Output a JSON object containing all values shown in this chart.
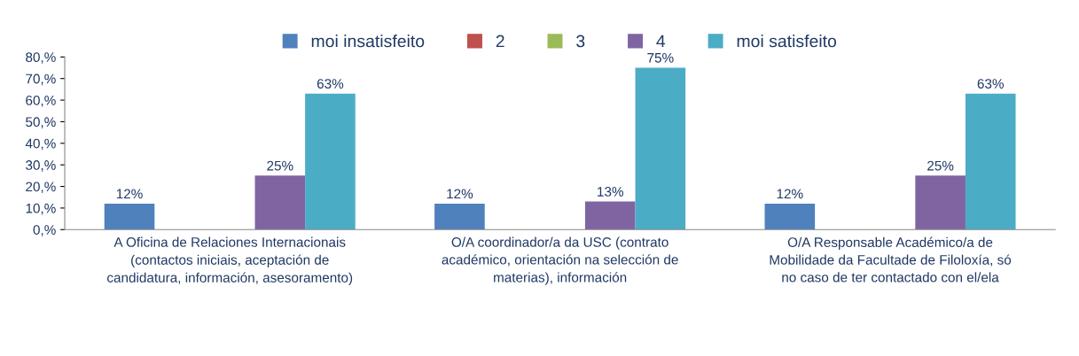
{
  "chart_data": {
    "type": "bar",
    "categories": [
      "A Oficina de Relaciones Internacionais\n(contactos iniciais, aceptación de\ncandidatura, información, asesoramento)",
      "O/A coordinador/a da USC (contrato\nacadémico, orientación na selección de\nmaterias), información",
      "O/A Responsable Académico/a de\nMobilidade da Facultade de Filoloxía, só\nno caso de ter contactado con el/ela"
    ],
    "series": [
      {
        "name": "moi insatisfeito",
        "color": "#4f81bd",
        "values": [
          12,
          12,
          12
        ],
        "value_labels": [
          "12%",
          "12%",
          "12%"
        ]
      },
      {
        "name": "2",
        "color": "#c0504d",
        "values": [
          null,
          null,
          null
        ]
      },
      {
        "name": "3",
        "color": "#9bbb59",
        "values": [
          null,
          null,
          null
        ]
      },
      {
        "name": "4",
        "color": "#8064a2",
        "values": [
          25,
          13,
          25
        ],
        "value_labels": [
          "25%",
          "13%",
          "25%"
        ]
      },
      {
        "name": "moi satisfeito",
        "color": "#4bacc6",
        "values": [
          63,
          75,
          63
        ],
        "value_labels": [
          "63%",
          "75%",
          "63%"
        ]
      }
    ],
    "ylim": [
      0,
      80
    ],
    "yticks": [
      {
        "value": 0,
        "label": "0,%"
      },
      {
        "value": 10,
        "label": "10,%"
      },
      {
        "value": 20,
        "label": "20,%"
      },
      {
        "value": 30,
        "label": "30,%"
      },
      {
        "value": 40,
        "label": "40,%"
      },
      {
        "value": 50,
        "label": "50,%"
      },
      {
        "value": 60,
        "label": "60,%"
      },
      {
        "value": 70,
        "label": "70,%"
      },
      {
        "value": 80,
        "label": "80,%"
      }
    ],
    "grid": false,
    "legend": "top"
  }
}
